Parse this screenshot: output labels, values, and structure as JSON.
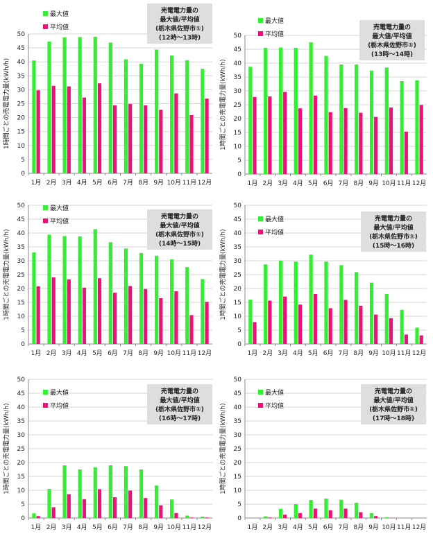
{
  "legend": {
    "max_label": "最大値",
    "avg_label": "平均値"
  },
  "ylabel": "1時間ごとの売電電力量(kWh/h)",
  "colors": {
    "max": "#33ee33",
    "avg": "#ee1177",
    "box": "#dedede",
    "grid": "#d6d6d6",
    "axis": "#888888"
  },
  "chart_data": [
    {
      "type": "bar",
      "title": [
        "売電電力量の",
        "最大値/平均値",
        "(栃木県佐野市①)",
        "(12時～13時)"
      ],
      "categories": [
        "1月",
        "2月",
        "3月",
        "4月",
        "5月",
        "6月",
        "7月",
        "8月",
        "9月",
        "10月",
        "11月",
        "12月"
      ],
      "ylim": [
        0,
        50
      ],
      "yticks": [
        0,
        5,
        10,
        15,
        20,
        25,
        30,
        35,
        40,
        45,
        50
      ],
      "series": [
        {
          "name": "最大値",
          "values": [
            40.5,
            47.3,
            48.8,
            48.9,
            49.0,
            46.9,
            40.9,
            39.3,
            44.4,
            42.3,
            40.6,
            37.5
          ]
        },
        {
          "name": "平均値",
          "values": [
            29.8,
            31.4,
            31.2,
            27.2,
            32.3,
            24.4,
            24.9,
            24.4,
            22.8,
            28.7,
            20.9,
            26.8
          ]
        }
      ]
    },
    {
      "type": "bar",
      "title": [
        "売電電力量の",
        "最大値/平均値",
        "(栃木県佐野市①)",
        "(13時～14時)"
      ],
      "categories": [
        "1月",
        "2月",
        "3月",
        "4月",
        "5月",
        "6月",
        "7月",
        "8月",
        "9月",
        "10月",
        "11月",
        "12月"
      ],
      "ylim": [
        0,
        50
      ],
      "yticks": [
        0,
        5,
        10,
        15,
        20,
        25,
        30,
        35,
        40,
        45,
        50
      ],
      "series": [
        {
          "name": "最大値",
          "values": [
            38.7,
            45.5,
            45.6,
            45.5,
            47.5,
            42.6,
            39.5,
            39.5,
            37.3,
            38.4,
            33.5,
            33.8
          ]
        },
        {
          "name": "平均値",
          "values": [
            27.8,
            28.0,
            29.6,
            23.7,
            28.3,
            22.3,
            23.8,
            22.1,
            20.6,
            24.0,
            15.3,
            24.9
          ]
        }
      ]
    },
    {
      "type": "bar",
      "title": [
        "売電電力量の",
        "最大値/平均値",
        "(栃木県佐野市①)",
        "(14時～15時)"
      ],
      "categories": [
        "1月",
        "2月",
        "3月",
        "4月",
        "5月",
        "6月",
        "7月",
        "8月",
        "9月",
        "10月",
        "11月",
        "12月"
      ],
      "ylim": [
        0,
        50
      ],
      "yticks": [
        0,
        5,
        10,
        15,
        20,
        25,
        30,
        35,
        40,
        45,
        50
      ],
      "series": [
        {
          "name": "最大値",
          "values": [
            33.0,
            39.4,
            38.9,
            38.8,
            41.4,
            36.7,
            34.4,
            32.8,
            31.8,
            30.5,
            27.7,
            23.4
          ]
        },
        {
          "name": "平均値",
          "values": [
            20.8,
            24.0,
            23.3,
            20.3,
            23.7,
            18.5,
            20.9,
            19.8,
            16.5,
            19.0,
            10.4,
            15.2
          ]
        }
      ]
    },
    {
      "type": "bar",
      "title": [
        "売電電力量の",
        "最大値/平均値",
        "(栃木県佐野市①)",
        "(15時～16時)"
      ],
      "categories": [
        "1月",
        "2月",
        "3月",
        "4月",
        "5月",
        "6月",
        "7月",
        "8月",
        "9月",
        "10月",
        "11月",
        "12月"
      ],
      "ylim": [
        0,
        50
      ],
      "yticks": [
        0,
        5,
        10,
        15,
        20,
        25,
        30,
        35,
        40,
        45,
        50
      ],
      "series": [
        {
          "name": "最大値",
          "values": [
            16.0,
            28.7,
            30.1,
            29.7,
            32.2,
            29.7,
            28.4,
            25.9,
            22.1,
            18.0,
            12.3,
            5.9
          ]
        },
        {
          "name": "平均値",
          "values": [
            7.9,
            15.6,
            17.1,
            14.2,
            18.0,
            12.9,
            15.9,
            13.8,
            10.6,
            9.3,
            3.4,
            3.1
          ]
        }
      ]
    },
    {
      "type": "bar",
      "title": [
        "売電電力量の",
        "最大値/平均値",
        "(栃木県佐野市①)",
        "(16時～17時)"
      ],
      "categories": [
        "1月",
        "2月",
        "3月",
        "4月",
        "5月",
        "6月",
        "7月",
        "8月",
        "9月",
        "10月",
        "11月",
        "12月"
      ],
      "ylim": [
        0,
        50
      ],
      "yticks": [
        0,
        5,
        10,
        15,
        20,
        25,
        30,
        35,
        40,
        45,
        50
      ],
      "series": [
        {
          "name": "最大値",
          "values": [
            1.7,
            10.5,
            19.0,
            17.5,
            18.3,
            19.0,
            18.7,
            17.5,
            11.7,
            6.7,
            0.9,
            0.5
          ]
        },
        {
          "name": "平均値",
          "values": [
            0.7,
            3.9,
            8.6,
            6.8,
            10.4,
            7.5,
            9.9,
            7.2,
            4.6,
            1.8,
            0.2,
            0.2
          ]
        }
      ]
    },
    {
      "type": "bar",
      "title": [
        "売電電力量の",
        "最大値/平均値",
        "(栃木県佐野市①)",
        "(17時～18時)"
      ],
      "categories": [
        "1月",
        "2月",
        "3月",
        "4月",
        "5月",
        "6月",
        "7月",
        "8月",
        "9月",
        "10月",
        "11月",
        "12月"
      ],
      "ylim": [
        0,
        50
      ],
      "yticks": [
        0,
        5,
        10,
        15,
        20,
        25,
        30,
        35,
        40,
        45,
        50
      ],
      "series": [
        {
          "name": "最大値",
          "values": [
            0.0,
            0.6,
            3.3,
            5.0,
            6.5,
            7.0,
            6.6,
            5.5,
            1.8,
            0.3,
            0.0,
            0.0
          ]
        },
        {
          "name": "平均値",
          "values": [
            0.0,
            0.2,
            1.2,
            1.8,
            3.4,
            2.8,
            3.4,
            2.1,
            0.7,
            0.1,
            0.0,
            0.0
          ]
        }
      ]
    }
  ]
}
